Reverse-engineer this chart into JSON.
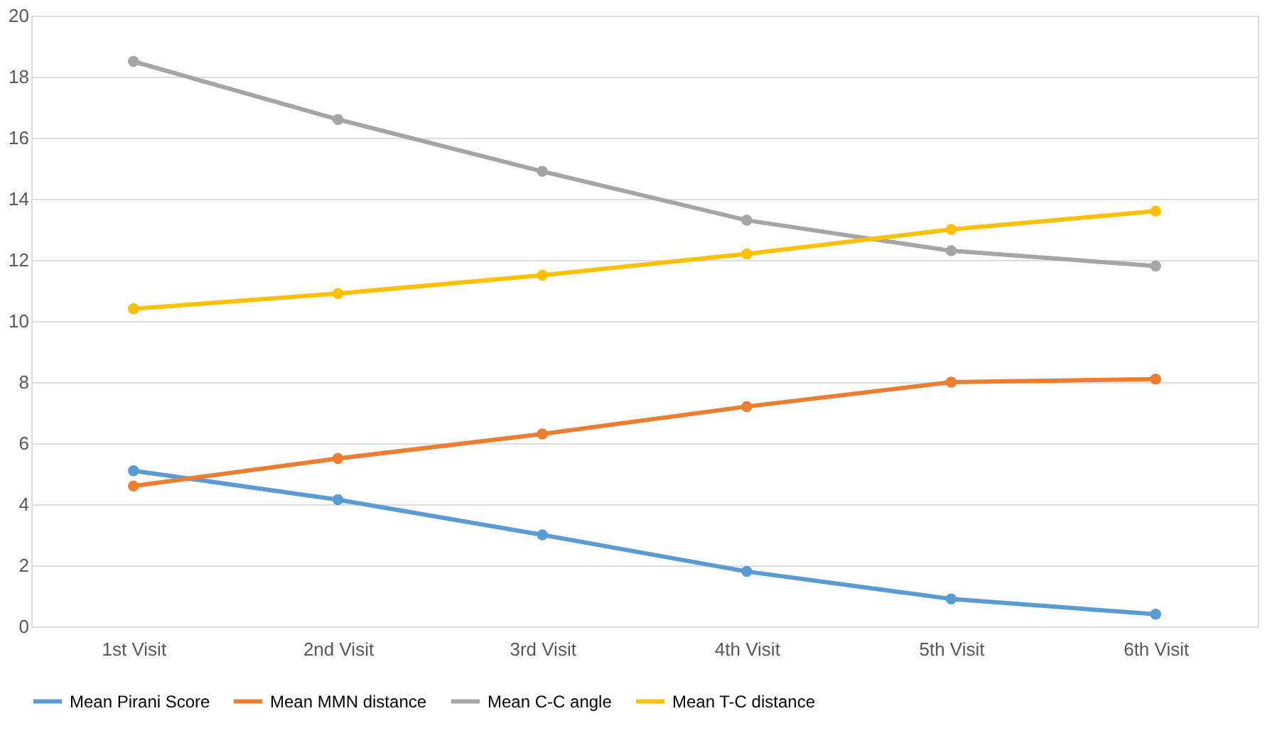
{
  "chart_data": {
    "type": "line",
    "categories": [
      "1st Visit",
      "2nd Visit",
      "3rd Visit",
      "4th Visit",
      "5th Visit",
      "6th Visit"
    ],
    "series": [
      {
        "name": "Mean Pirani Score",
        "color": "#5b9bd5",
        "values": [
          5.1,
          4.15,
          3.0,
          1.8,
          0.9,
          0.4
        ]
      },
      {
        "name": "Mean MMN distance",
        "color": "#ed7d31",
        "values": [
          4.6,
          5.5,
          6.3,
          7.2,
          8.0,
          8.1
        ]
      },
      {
        "name": "Mean C-C angle",
        "color": "#a5a5a5",
        "values": [
          18.5,
          16.6,
          14.9,
          13.3,
          12.3,
          11.8
        ]
      },
      {
        "name": "Mean T-C distance",
        "color": "#ffc000",
        "values": [
          10.4,
          10.9,
          11.5,
          12.2,
          13.0,
          13.6
        ]
      }
    ],
    "ylim": [
      0,
      20
    ],
    "yticks": [
      0,
      2,
      4,
      6,
      8,
      10,
      12,
      14,
      16,
      18,
      20
    ],
    "grid": "y",
    "legend": "bottom",
    "marker": "circle",
    "line_style": "solid"
  }
}
